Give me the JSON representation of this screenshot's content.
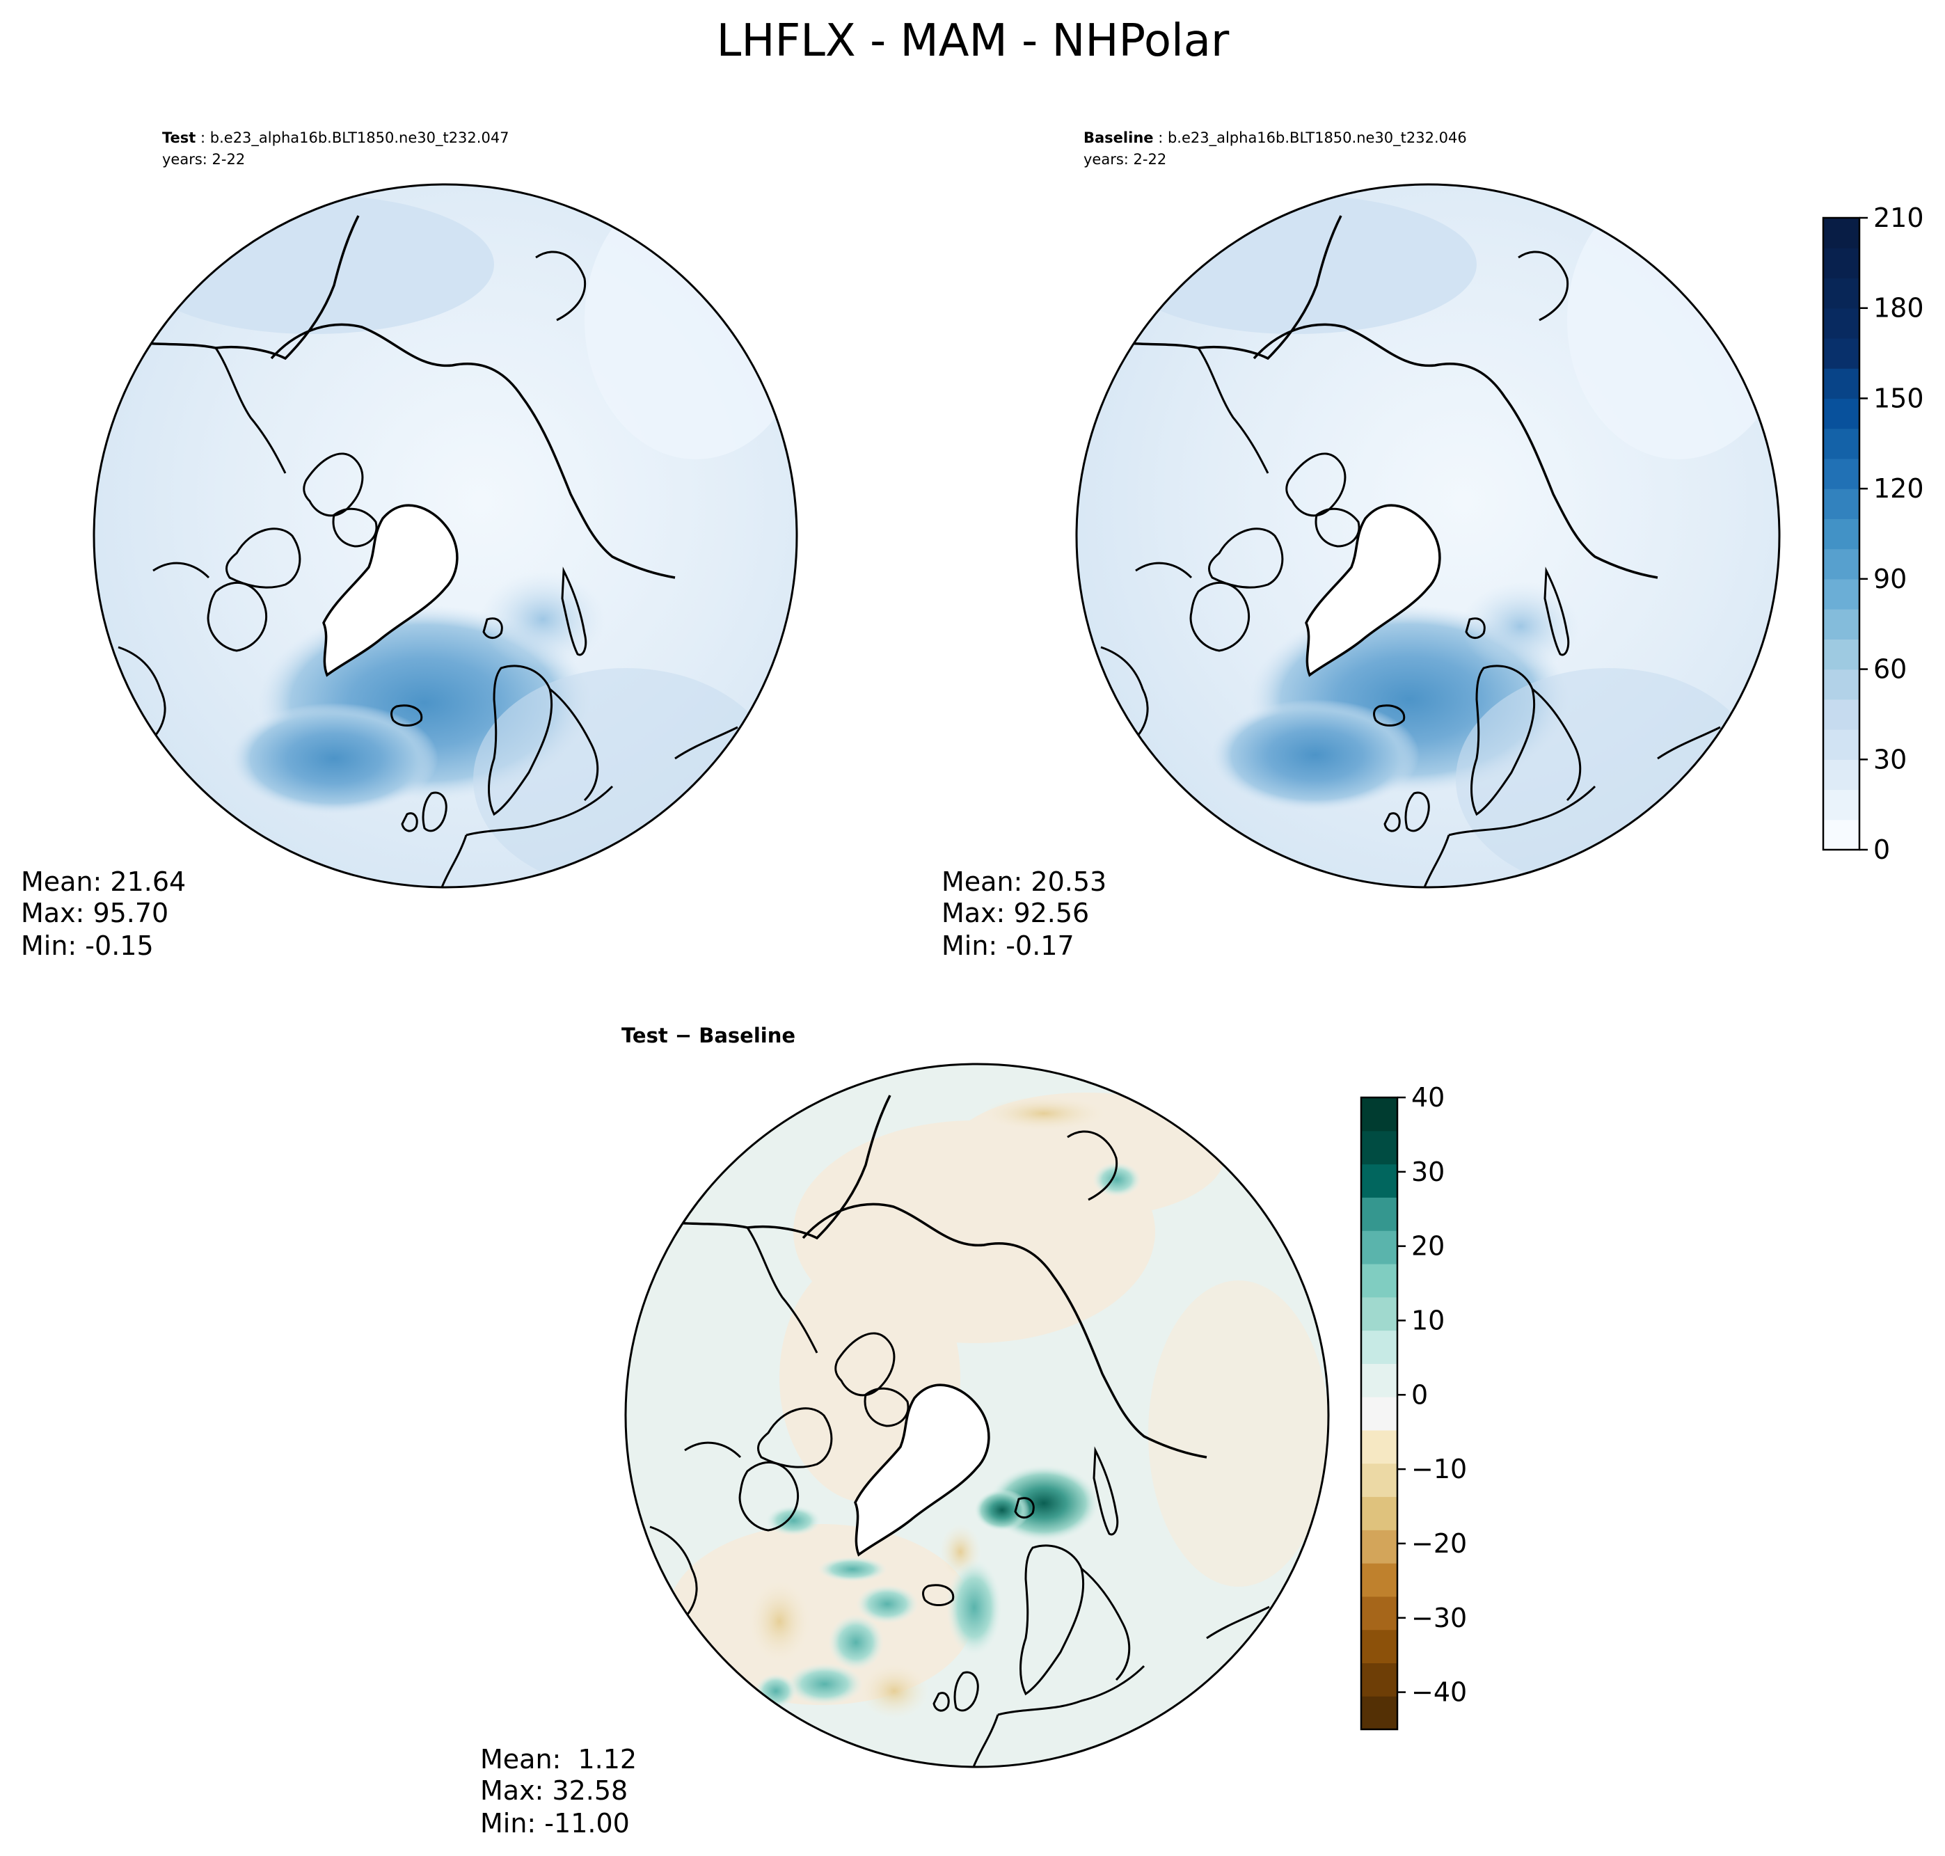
{
  "figure": {
    "title": "LHFLX - MAM - NHPolar"
  },
  "chart_data": [
    {
      "type": "heatmap",
      "panel": "test",
      "title_bold": "Test",
      "title_case": "b.e23_alpha16b.BLT1850.ne30_t232.047",
      "years": "years: 2-22",
      "projection": "north-polar-stereographic",
      "stats": {
        "mean": "Mean: 21.64",
        "max": "Max: 95.70",
        "min": "Min: -0.15"
      },
      "colormap": "Blues",
      "range": [
        0,
        210
      ]
    },
    {
      "type": "heatmap",
      "panel": "baseline",
      "title_bold": "Baseline",
      "title_case": "b.e23_alpha16b.BLT1850.ne30_t232.046",
      "years": "years: 2-22",
      "projection": "north-polar-stereographic",
      "stats": {
        "mean": "Mean: 20.53",
        "max": "Max: 92.56",
        "min": "Min: -0.17"
      },
      "colormap": "Blues",
      "range": [
        0,
        210
      ],
      "colorbar": {
        "ticks": [
          "210",
          "180",
          "150",
          "120",
          "90",
          "60",
          "30",
          "0"
        ],
        "tick_values": [
          210,
          180,
          150,
          120,
          90,
          60,
          30,
          0
        ],
        "levels": 21,
        "colors": [
          "#f7fbff",
          "#eaf3fb",
          "#deebf7",
          "#d1e3f3",
          "#c6dbef",
          "#b2d2e8",
          "#9ecae1",
          "#84bcdb",
          "#6baed6",
          "#57a0ce",
          "#4292c6",
          "#3282be",
          "#2171b5",
          "#1462a8",
          "#08519c",
          "#084488",
          "#08306b",
          "#082a60",
          "#082657",
          "#08214e",
          "#081d45"
        ]
      }
    },
    {
      "type": "heatmap",
      "panel": "difference",
      "title": "Test − Baseline",
      "projection": "north-polar-stereographic",
      "stats": {
        "mean": "Mean:  1.12",
        "max": "Max: 32.58",
        "min": "Min: -11.00"
      },
      "colormap": "BrBG",
      "range": [
        -45,
        40
      ],
      "colorbar": {
        "ticks": [
          "40",
          "30",
          "20",
          "10",
          "0",
          "−10",
          "−20",
          "−30",
          "−40"
        ],
        "tick_values": [
          40,
          30,
          20,
          10,
          0,
          -10,
          -20,
          -30,
          -40
        ],
        "levels": 17,
        "colors": [
          "#543005",
          "#6e3e06",
          "#8c510a",
          "#a6661a",
          "#bf812d",
          "#d3a55a",
          "#dfc27d",
          "#ecd9a5",
          "#f6e8c3",
          "#f5f5f5",
          "#e4f2ef",
          "#c7eae5",
          "#a0d9ce",
          "#80cdc1",
          "#5ab4ac",
          "#35978f",
          "#01665e",
          "#004c42",
          "#003c30"
        ]
      }
    }
  ]
}
